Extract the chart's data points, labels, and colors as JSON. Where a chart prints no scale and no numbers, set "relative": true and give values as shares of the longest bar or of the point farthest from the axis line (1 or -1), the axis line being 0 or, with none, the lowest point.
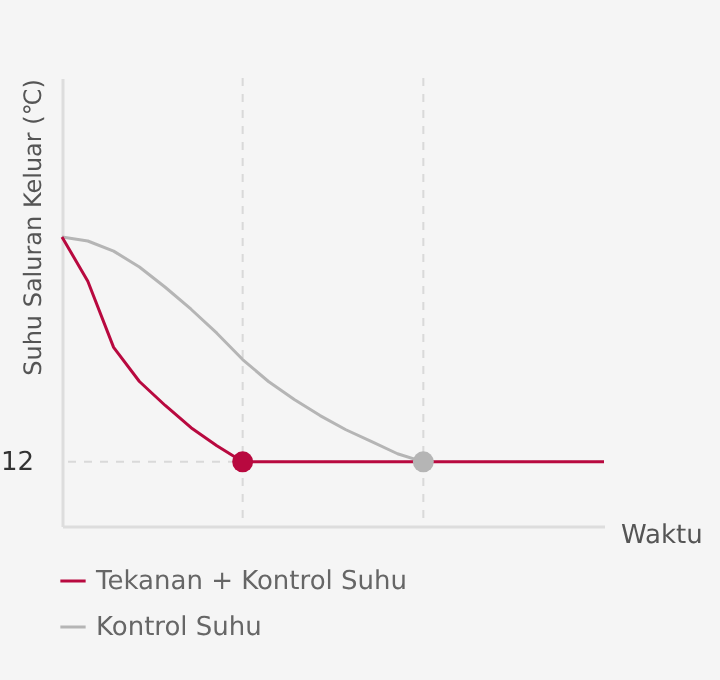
{
  "chart_data": {
    "type": "line",
    "ylabel": "Suhu Saluran Keluar (℃)",
    "xlabel": "Waktu",
    "relative": true,
    "categories": [
      null,
      null,
      null,
      null,
      null,
      null,
      null,
      null,
      null,
      null,
      null,
      null,
      null,
      null,
      null,
      null,
      null,
      null,
      null,
      null,
      null,
      null
    ],
    "series": [
      {
        "name": "Tekanan + Kontrol Suhu",
        "color": "#b8093f",
        "values": [
          1,
          0.847,
          0.618,
          0.5,
          0.417,
          0.34,
          0.278,
          0.222,
          0.222,
          0.222,
          0.222,
          0.222,
          0.222,
          0.222,
          0.222,
          0.222,
          0.222,
          0.222,
          0.222,
          0.222,
          0.222,
          0.222
        ]
      },
      {
        "name": "Kontrol Suhu",
        "color": "#b5b5b5",
        "values": [
          1,
          0.986,
          0.951,
          0.896,
          0.826,
          0.75,
          0.667,
          0.576,
          0.5,
          0.438,
          0.382,
          0.333,
          0.292,
          0.25,
          0.222,
          null,
          null,
          null,
          null,
          null,
          null,
          null
        ]
      },
      {
        "type": "line",
        "marker": "circle",
        "color": "#b8093f",
        "values": [
          null,
          null,
          null,
          null,
          null,
          null,
          null,
          0.222,
          null,
          null,
          null,
          null,
          null,
          null,
          null,
          null,
          null,
          null,
          null,
          null,
          null,
          null
        ]
      },
      {
        "type": "line",
        "marker": "circle",
        "color": "#b5b5b5",
        "values": [
          null,
          null,
          null,
          null,
          null,
          null,
          null,
          null,
          null,
          null,
          null,
          null,
          null,
          null,
          0.222,
          null,
          null,
          null,
          null,
          null,
          null,
          null
        ]
      }
    ],
    "ref_lines": [
      {
        "axis": "y",
        "value": 0.222,
        "line_style": "dashed"
      }
    ],
    "annotations": [
      "12"
    ],
    "legend": "bottom left"
  }
}
